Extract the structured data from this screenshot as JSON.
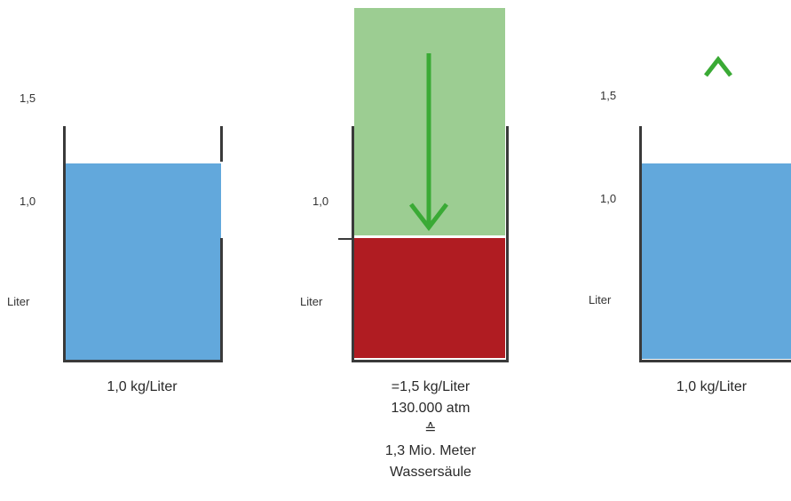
{
  "panels": [
    {
      "id": "left",
      "ticks": [
        "1,5",
        "1,0",
        "Liter"
      ],
      "caption": [
        "1,0 kg/Liter"
      ]
    },
    {
      "id": "middle",
      "ticks": [
        "1,0",
        "Liter"
      ],
      "caption": [
        "=1,5 kg/Liter",
        "130.000 atm",
        "≙",
        "1,3 Mio. Meter",
        "Wassersäule"
      ]
    },
    {
      "id": "right",
      "ticks": [
        "1,5",
        "1,0",
        "Liter"
      ],
      "caption": [
        "1,0 kg/Liter"
      ]
    }
  ],
  "colors": {
    "water": "#62a8dc",
    "compressed": "#b01c22",
    "pressure": "#9ccd92",
    "arrow": "#3aaa35",
    "wall": "#3a3a3a"
  }
}
